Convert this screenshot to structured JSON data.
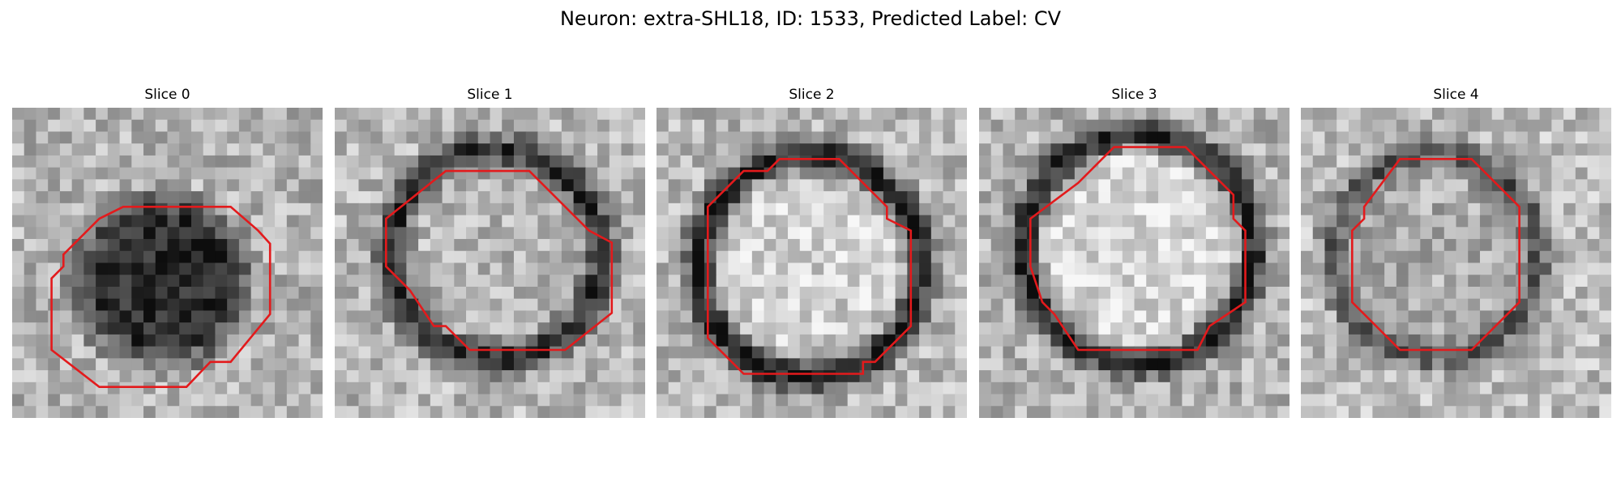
{
  "figure": {
    "title": "Neuron: extra-SHL18, ID: 1533, Predicted Label: CV"
  },
  "colors": {
    "contour": "#e31a1c",
    "background": "#ffffff"
  },
  "panels": [
    {
      "title": "Slice 0",
      "contour": [
        [
          11.3,
          8.3
        ],
        [
          18.3,
          8.3
        ],
        [
          20.6,
          10.3
        ],
        [
          21.6,
          11.4
        ],
        [
          21.6,
          17.3
        ],
        [
          18.3,
          21.3
        ],
        [
          16.6,
          21.3
        ],
        [
          14.6,
          23.4
        ],
        [
          7.3,
          23.4
        ],
        [
          3.3,
          20.3
        ],
        [
          3.3,
          14.3
        ],
        [
          4.3,
          13.3
        ],
        [
          4.3,
          12.3
        ],
        [
          7.3,
          9.3
        ],
        [
          9.3,
          8.3
        ]
      ]
    },
    {
      "title": "Slice 1",
      "contour": [
        [
          9.3,
          5.3
        ],
        [
          16.3,
          5.3
        ],
        [
          21.3,
          10.3
        ],
        [
          23.2,
          11.3
        ],
        [
          23.2,
          17.2
        ],
        [
          19.3,
          20.3
        ],
        [
          11.3,
          20.3
        ],
        [
          9.3,
          18.3
        ],
        [
          8.3,
          18.3
        ],
        [
          6.3,
          15.3
        ],
        [
          5.3,
          14.3
        ],
        [
          4.3,
          13.3
        ],
        [
          4.3,
          9.3
        ],
        [
          9.3,
          5.3
        ]
      ]
    },
    {
      "title": "Slice 2",
      "contour": [
        [
          7.3,
          5.3
        ],
        [
          9.3,
          5.3
        ],
        [
          10.3,
          4.3
        ],
        [
          15.3,
          4.3
        ],
        [
          17.3,
          6.3
        ],
        [
          19.3,
          8.3
        ],
        [
          19.3,
          9.3
        ],
        [
          21.3,
          10.3
        ],
        [
          21.3,
          18.3
        ],
        [
          18.3,
          21.3
        ],
        [
          17.3,
          21.3
        ],
        [
          17.3,
          22.3
        ],
        [
          7.3,
          22.3
        ],
        [
          4.3,
          19.3
        ],
        [
          4.3,
          8.3
        ],
        [
          7.3,
          5.3
        ]
      ]
    },
    {
      "title": "Slice 3",
      "contour": [
        [
          11.3,
          3.3
        ],
        [
          17.3,
          3.3
        ],
        [
          19.3,
          5.3
        ],
        [
          21.3,
          7.3
        ],
        [
          21.3,
          9.3
        ],
        [
          22.3,
          10.3
        ],
        [
          22.3,
          16.3
        ],
        [
          19.3,
          18.3
        ],
        [
          18.3,
          20.3
        ],
        [
          8.3,
          20.3
        ],
        [
          6.3,
          17.3
        ],
        [
          5.3,
          16.3
        ],
        [
          4.3,
          13.3
        ],
        [
          4.3,
          9.3
        ],
        [
          8.3,
          6.3
        ],
        [
          9.3,
          5.3
        ],
        [
          10.3,
          4.3
        ],
        [
          11.3,
          3.3
        ]
      ]
    },
    {
      "title": "Slice 4",
      "contour": [
        [
          8.3,
          4.3
        ],
        [
          14.3,
          4.3
        ],
        [
          18.3,
          8.3
        ],
        [
          18.3,
          16.3
        ],
        [
          14.3,
          20.3
        ],
        [
          8.3,
          20.3
        ],
        [
          4.3,
          16.3
        ],
        [
          4.3,
          10.3
        ],
        [
          5.3,
          9.3
        ],
        [
          5.3,
          8.3
        ],
        [
          8.3,
          4.3
        ]
      ]
    }
  ]
}
